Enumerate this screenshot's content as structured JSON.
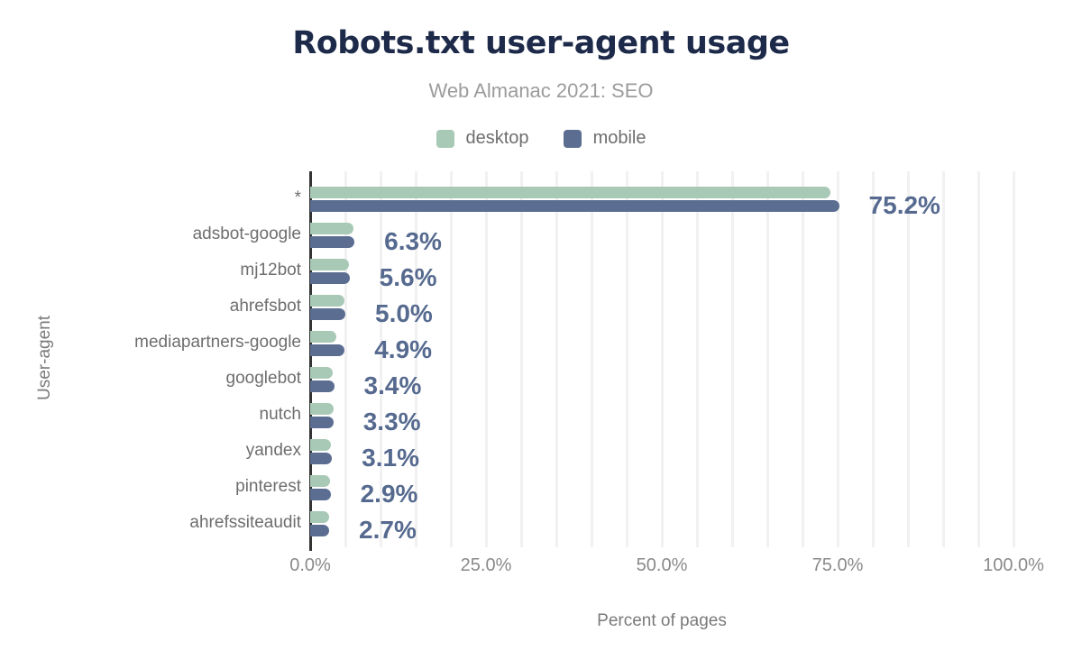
{
  "figure": {
    "title": "Robots.txt user-agent usage",
    "subtitle": "Web Almanac 2021: SEO"
  },
  "chart_data": {
    "type": "bar",
    "orientation": "horizontal",
    "title": "Robots.txt user-agent usage",
    "subtitle": "Web Almanac 2021: SEO",
    "xlabel": "Percent of pages",
    "ylabel": "User-agent",
    "xlim": [
      0,
      100
    ],
    "gridline_step": 5,
    "grid": true,
    "legend_position": "top",
    "x_ticks": [
      {
        "value": 0,
        "label": "0.0%"
      },
      {
        "value": 25,
        "label": "25.0%"
      },
      {
        "value": 50,
        "label": "50.0%"
      },
      {
        "value": 75,
        "label": "75.0%"
      },
      {
        "value": 100,
        "label": "100.0%"
      }
    ],
    "categories": [
      "*",
      "adsbot-google",
      "mj12bot",
      "ahrefsbot",
      "mediapartners-google",
      "googlebot",
      "nutch",
      "yandex",
      "pinterest",
      "ahrefssiteaudit"
    ],
    "series": [
      {
        "name": "desktop",
        "color": "#a8c9b5",
        "values": [
          74.0,
          6.2,
          5.5,
          4.9,
          3.7,
          3.2,
          3.3,
          3.0,
          2.8,
          2.7
        ]
      },
      {
        "name": "mobile",
        "color": "#5b6e92",
        "values": [
          75.2,
          6.3,
          5.6,
          5.0,
          4.9,
          3.4,
          3.3,
          3.1,
          2.9,
          2.7
        ]
      }
    ],
    "data_labels": {
      "labeled_series": "mobile",
      "color": "#566a8f",
      "values": [
        "75.2%",
        "6.3%",
        "5.6%",
        "5.0%",
        "4.9%",
        "3.4%",
        "3.3%",
        "3.1%",
        "2.9%",
        "2.7%"
      ]
    }
  },
  "colors": {
    "title": "#1e2a4a",
    "subtitle": "#9c9c9c",
    "axis_line": "#333333",
    "gridline": "#f1f1f1",
    "category_label": "#6e6e6e",
    "tick_label": "#8a8a8a",
    "axis_title": "#7a7a7a",
    "desktop_bar": "#a8c9b5",
    "mobile_bar": "#5b6e92",
    "value_label": "#566a8f",
    "background": "#ffffff"
  }
}
